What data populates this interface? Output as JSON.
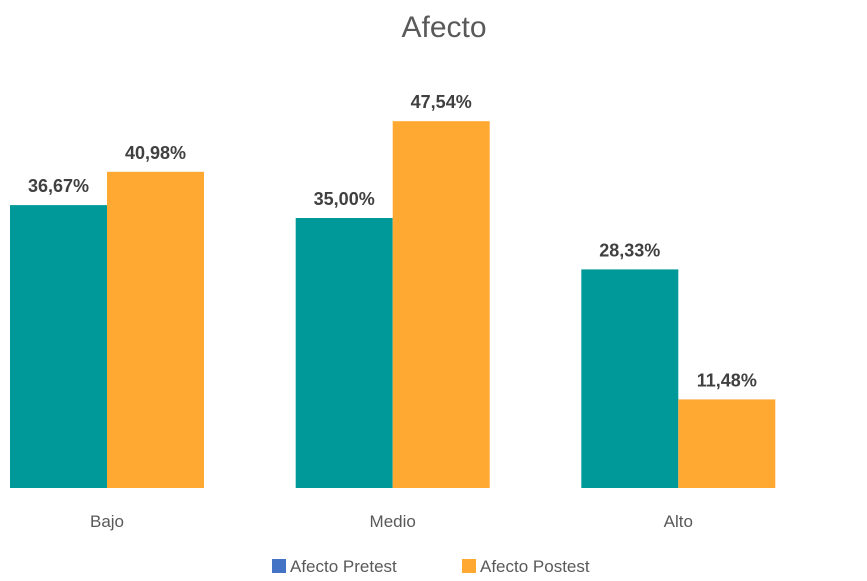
{
  "chart_data": {
    "type": "bar",
    "title": "Afecto",
    "xlabel": "",
    "ylabel": "",
    "categories": [
      "Bajo",
      "Medio",
      "Alto"
    ],
    "series": [
      {
        "name": "Afecto Pretest",
        "values": [
          36.67,
          35.0,
          28.33
        ],
        "labels": [
          "36,67%",
          "35,00%",
          "28,33%"
        ],
        "color": "#009999"
      },
      {
        "name": "Afecto Postest",
        "values": [
          40.98,
          47.54,
          11.48
        ],
        "labels": [
          "40,98%",
          "47,54%",
          "11,48%"
        ],
        "color": "#FFA832"
      }
    ],
    "legend_swatch_colors": [
      "#4472C4",
      "#FFA832"
    ],
    "ylim": [
      0,
      50
    ],
    "grid": false,
    "legend_position": "bottom"
  }
}
